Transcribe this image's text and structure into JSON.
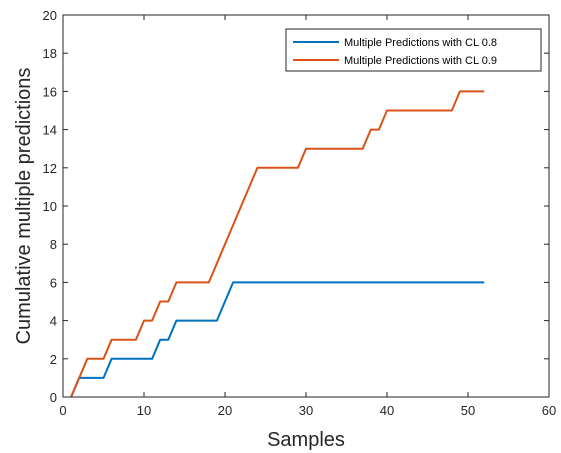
{
  "chart_data": {
    "type": "line",
    "title": "",
    "xlabel": "Samples",
    "ylabel": "Cumulative multiple predictions",
    "xlim": [
      0,
      60
    ],
    "ylim": [
      0,
      20
    ],
    "xticks": [
      0,
      10,
      20,
      30,
      40,
      50,
      60
    ],
    "yticks": [
      0,
      2,
      4,
      6,
      8,
      10,
      12,
      14,
      16,
      18,
      20
    ],
    "grid": false,
    "legend_position": "top-right",
    "series": [
      {
        "name": "Multiple Predictions with CL 0.8",
        "color": "#0072BD",
        "x": [
          1,
          2,
          3,
          4,
          5,
          6,
          7,
          8,
          9,
          10,
          11,
          12,
          13,
          14,
          15,
          16,
          17,
          18,
          19,
          20,
          21,
          22,
          23,
          24,
          25,
          26,
          27,
          28,
          29,
          30,
          31,
          32,
          33,
          34,
          35,
          36,
          37,
          38,
          39,
          40,
          41,
          42,
          43,
          44,
          45,
          46,
          47,
          48,
          49,
          50,
          51,
          52
        ],
        "y": [
          0,
          1,
          1,
          1,
          1,
          2,
          2,
          2,
          2,
          2,
          2,
          3,
          3,
          4,
          4,
          4,
          4,
          4,
          4,
          5,
          6,
          6,
          6,
          6,
          6,
          6,
          6,
          6,
          6,
          6,
          6,
          6,
          6,
          6,
          6,
          6,
          6,
          6,
          6,
          6,
          6,
          6,
          6,
          6,
          6,
          6,
          6,
          6,
          6,
          6,
          6,
          6
        ]
      },
      {
        "name": "Multiple Predictions with CL 0.9",
        "color": "#D95319",
        "x": [
          1,
          2,
          3,
          4,
          5,
          6,
          7,
          8,
          9,
          10,
          11,
          12,
          13,
          14,
          15,
          16,
          17,
          18,
          19,
          20,
          21,
          22,
          23,
          24,
          25,
          26,
          27,
          28,
          29,
          30,
          31,
          32,
          33,
          34,
          35,
          36,
          37,
          38,
          39,
          40,
          41,
          42,
          43,
          44,
          45,
          46,
          47,
          48,
          49,
          50,
          51,
          52
        ],
        "y": [
          0,
          1,
          2,
          2,
          2,
          3,
          3,
          3,
          3,
          4,
          4,
          5,
          5,
          6,
          6,
          6,
          6,
          6,
          7,
          8,
          9,
          10,
          11,
          12,
          12,
          12,
          12,
          12,
          12,
          13,
          13,
          13,
          13,
          13,
          13,
          13,
          13,
          14,
          14,
          15,
          15,
          15,
          15,
          15,
          15,
          15,
          15,
          15,
          16,
          16,
          16,
          16
        ]
      }
    ]
  }
}
